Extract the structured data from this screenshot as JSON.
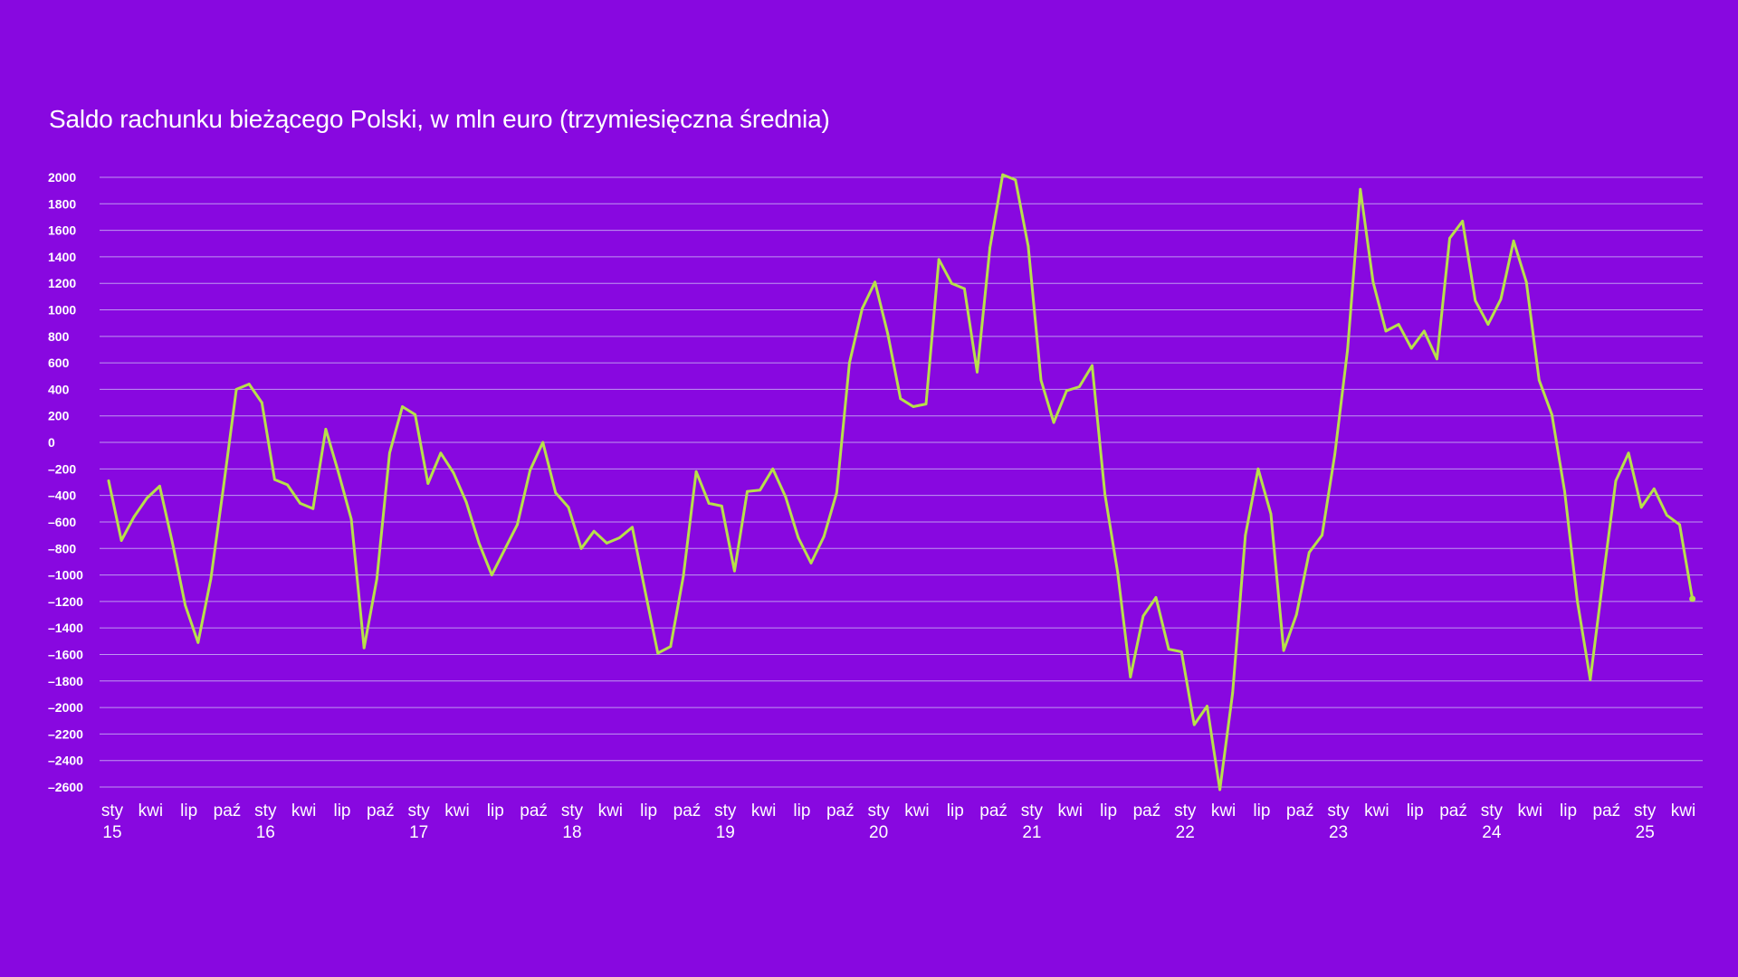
{
  "colors": {
    "background": "#8808E0",
    "line": "#B7E04A",
    "grid": "#C6A6F2",
    "text": "#FFFFFF"
  },
  "chart_data": {
    "type": "line",
    "title": "Saldo rachunku bieżącego Polski, w mln euro (trzymiesięczna średnia)",
    "xlabel": "",
    "ylabel": "",
    "ylim": [
      -2600,
      2000
    ],
    "yticks": [
      2000,
      1800,
      1600,
      1400,
      1200,
      1000,
      800,
      600,
      400,
      200,
      0,
      -200,
      -400,
      -600,
      -800,
      -1000,
      -1200,
      -1400,
      -1600,
      -1800,
      -2000,
      -2200,
      -2400,
      -2600
    ],
    "ytick_labels": [
      "2000",
      "1800",
      "1600",
      "1400",
      "1200",
      "1000",
      "800",
      "600",
      "400",
      "200",
      "0",
      "–200",
      "–400",
      "–600",
      "–800",
      "–1000",
      "–1200",
      "–1400",
      "–1600",
      "–1800",
      "–2000",
      "–2200",
      "–2400",
      "–2600"
    ],
    "grid": true,
    "x_start": "2015-01",
    "x_ticks": [
      {
        "month": "sty",
        "year": "15"
      },
      {
        "month": "kwi",
        "year": ""
      },
      {
        "month": "lip",
        "year": ""
      },
      {
        "month": "paź",
        "year": ""
      },
      {
        "month": "sty",
        "year": "16"
      },
      {
        "month": "kwi",
        "year": ""
      },
      {
        "month": "lip",
        "year": ""
      },
      {
        "month": "paź",
        "year": ""
      },
      {
        "month": "sty",
        "year": "17"
      },
      {
        "month": "kwi",
        "year": ""
      },
      {
        "month": "lip",
        "year": ""
      },
      {
        "month": "paź",
        "year": ""
      },
      {
        "month": "sty",
        "year": "18"
      },
      {
        "month": "kwi",
        "year": ""
      },
      {
        "month": "lip",
        "year": ""
      },
      {
        "month": "paź",
        "year": ""
      },
      {
        "month": "sty",
        "year": "19"
      },
      {
        "month": "kwi",
        "year": ""
      },
      {
        "month": "lip",
        "year": ""
      },
      {
        "month": "paź",
        "year": ""
      },
      {
        "month": "sty",
        "year": "20"
      },
      {
        "month": "kwi",
        "year": ""
      },
      {
        "month": "lip",
        "year": ""
      },
      {
        "month": "paź",
        "year": ""
      },
      {
        "month": "sty",
        "year": "21"
      },
      {
        "month": "kwi",
        "year": ""
      },
      {
        "month": "lip",
        "year": ""
      },
      {
        "month": "paź",
        "year": ""
      },
      {
        "month": "sty",
        "year": "22"
      },
      {
        "month": "kwi",
        "year": ""
      },
      {
        "month": "lip",
        "year": ""
      },
      {
        "month": "paź",
        "year": ""
      },
      {
        "month": "sty",
        "year": "23"
      },
      {
        "month": "kwi",
        "year": ""
      },
      {
        "month": "lip",
        "year": ""
      },
      {
        "month": "paź",
        "year": ""
      },
      {
        "month": "sty",
        "year": "24"
      },
      {
        "month": "kwi",
        "year": ""
      },
      {
        "month": "lip",
        "year": ""
      },
      {
        "month": "paź",
        "year": ""
      },
      {
        "month": "sty",
        "year": "25"
      },
      {
        "month": "kwi",
        "year": ""
      }
    ],
    "series": [
      {
        "values": [
          -290,
          -740,
          -560,
          -420,
          -330,
          -760,
          -1230,
          -1510,
          -1030,
          -330,
          400,
          440,
          300,
          -280,
          -320,
          -460,
          -500,
          100,
          -230,
          -580,
          -1550,
          -1030,
          -80,
          270,
          210,
          -310,
          -80,
          -230,
          -450,
          -760,
          -1000,
          -810,
          -620,
          -210,
          0,
          -380,
          -490,
          -800,
          -670,
          -760,
          -720,
          -640,
          -1120,
          -1590,
          -1540,
          -1010,
          -220,
          -460,
          -480,
          -970,
          -370,
          -360,
          -200,
          -410,
          -720,
          -910,
          -710,
          -380,
          600,
          1010,
          1210,
          820,
          330,
          270,
          290,
          1380,
          1200,
          1160,
          530,
          1470,
          2020,
          1980,
          1480,
          470,
          150,
          390,
          420,
          580,
          -390,
          -980,
          -1770,
          -1310,
          -1170,
          -1560,
          -1580,
          -2130,
          -1990,
          -2620,
          -1890,
          -700,
          -200,
          -540,
          -1570,
          -1300,
          -830,
          -700,
          -90,
          700,
          1910,
          1210,
          840,
          890,
          710,
          840,
          630,
          1540,
          1670,
          1070,
          890,
          1080,
          1520,
          1210,
          470,
          210,
          -370,
          -1200,
          -1790,
          -1030,
          -290,
          -80,
          -490,
          -350,
          -550,
          -620,
          -1180
        ]
      }
    ]
  }
}
